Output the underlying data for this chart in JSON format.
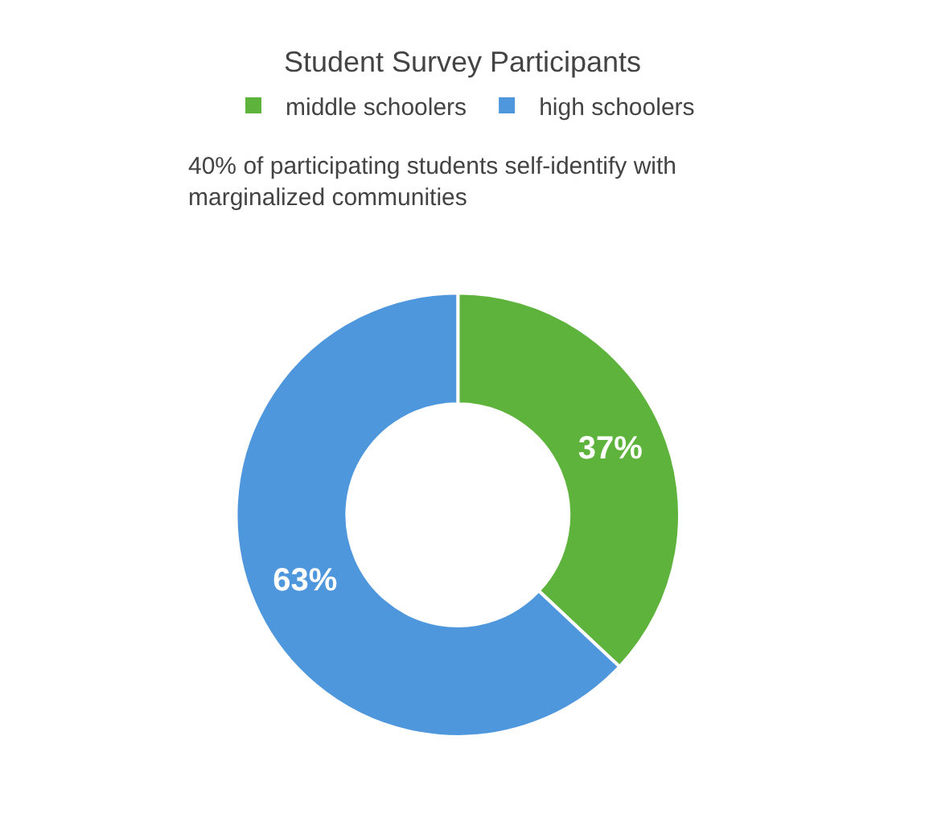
{
  "chart_data": {
    "type": "donut",
    "title": "Student Survey Participants",
    "subtitle": "40% of participating students self-identify with marginalized communities",
    "categories": [
      "middle schoolers",
      "high schoolers"
    ],
    "values": [
      37,
      63
    ],
    "colors": [
      "#5db33b",
      "#4f97dd"
    ],
    "value_labels": [
      "37%",
      "63%"
    ],
    "legend": "top"
  }
}
